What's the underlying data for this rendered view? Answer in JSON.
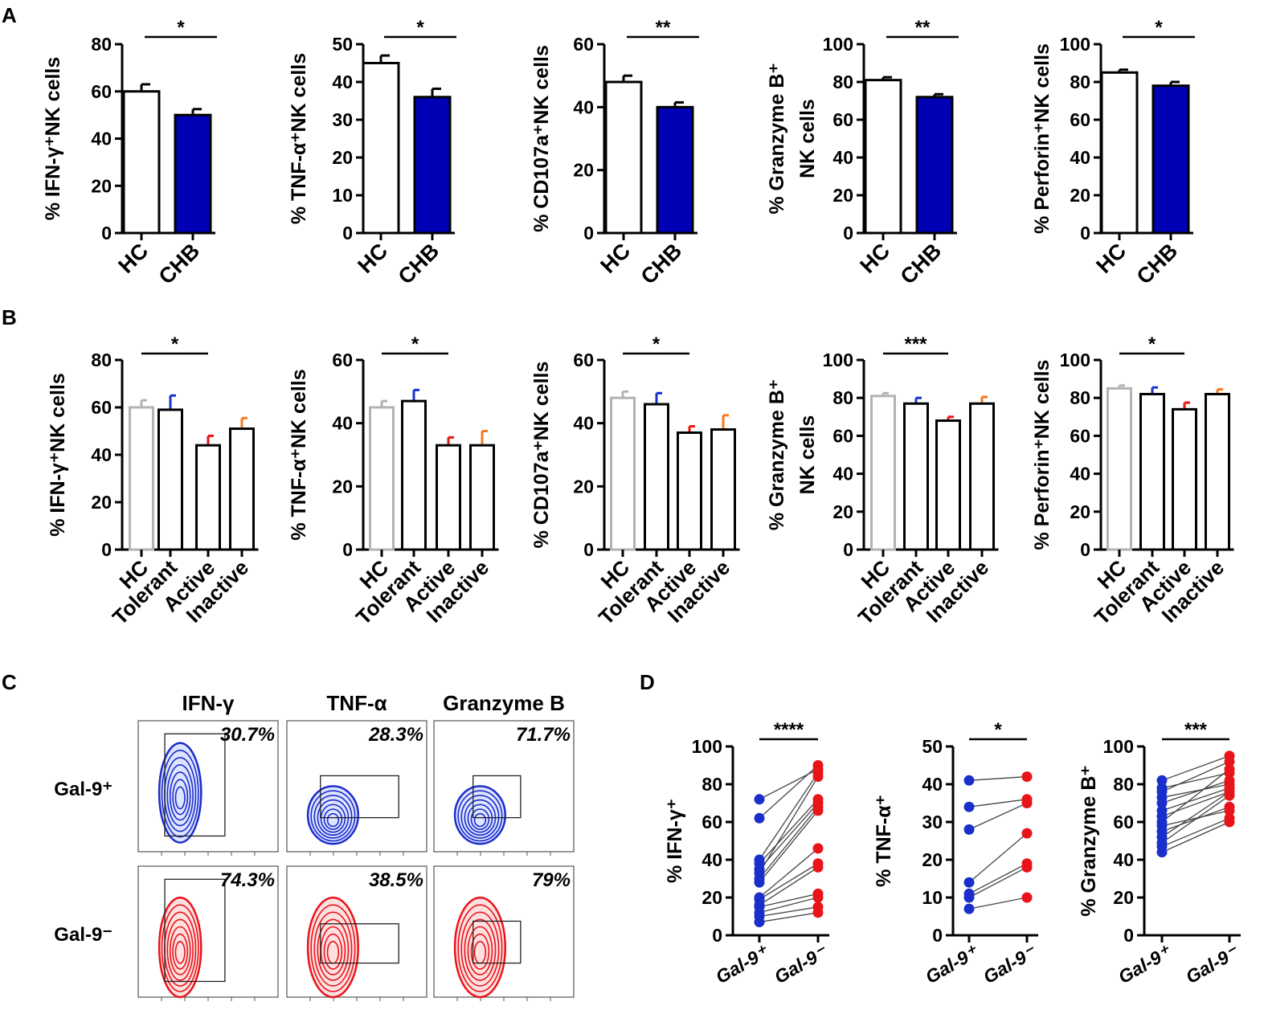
{
  "panel_labels": {
    "a": "A",
    "b": "B",
    "c": "C",
    "d": "D"
  },
  "colors": {
    "chb": "#0000b4",
    "hc_b": "#b3b3b3",
    "tolerant": "#1a33cc",
    "active": "#e8160e",
    "inactive": "#f47a20",
    "gal_pos": "#1a2ecc",
    "gal_neg": "#e8141a",
    "black": "#000000"
  },
  "chart_data": [
    {
      "id": "A1",
      "type": "bar",
      "title": "",
      "ylabel": "% IFN-γ⁺NK cells",
      "categories": [
        "HC",
        "CHB"
      ],
      "values": [
        60,
        50
      ],
      "errors": [
        3,
        2.5
      ],
      "ylim": [
        0,
        80
      ],
      "yticks": [
        "0",
        "20",
        "40",
        "60",
        "80"
      ],
      "significance": "*"
    },
    {
      "id": "A2",
      "type": "bar",
      "title": "",
      "ylabel": "% TNF-α⁺NK cells",
      "categories": [
        "HC",
        "CHB"
      ],
      "values": [
        45,
        36
      ],
      "errors": [
        2,
        2.2
      ],
      "ylim": [
        0,
        50
      ],
      "yticks": [
        "0",
        "10",
        "20",
        "30",
        "40",
        "50"
      ],
      "significance": "*"
    },
    {
      "id": "A3",
      "type": "bar",
      "title": "",
      "ylabel": "% CD107a⁺NK cells",
      "categories": [
        "HC",
        "CHB"
      ],
      "values": [
        48,
        40
      ],
      "errors": [
        2,
        1.5
      ],
      "ylim": [
        0,
        60
      ],
      "yticks": [
        "0",
        "20",
        "40",
        "60"
      ],
      "significance": "**"
    },
    {
      "id": "A4",
      "type": "bar",
      "title": "",
      "ylabel": "% Granzyme B⁺ NK cells",
      "categories": [
        "HC",
        "CHB"
      ],
      "values": [
        81,
        72
      ],
      "errors": [
        1.5,
        1.5
      ],
      "ylim": [
        0,
        100
      ],
      "yticks": [
        "0",
        "20",
        "40",
        "60",
        "80",
        "100"
      ],
      "significance": "**"
    },
    {
      "id": "A5",
      "type": "bar",
      "title": "",
      "ylabel": "% Perforin⁺NK cells",
      "categories": [
        "HC",
        "CHB"
      ],
      "values": [
        85,
        78
      ],
      "errors": [
        1.5,
        2
      ],
      "ylim": [
        0,
        100
      ],
      "yticks": [
        "0",
        "20",
        "40",
        "60",
        "80",
        "100"
      ],
      "significance": "*"
    },
    {
      "id": "B1",
      "type": "bar",
      "title": "",
      "ylabel": "% IFN-γ⁺NK cells",
      "categories": [
        "HC",
        "Tolerant",
        "Active",
        "Inactive"
      ],
      "values": [
        60,
        59,
        44,
        51
      ],
      "errors": [
        3,
        6,
        4,
        4.5
      ],
      "ylim": [
        0,
        80
      ],
      "yticks": [
        "0",
        "20",
        "40",
        "60",
        "80"
      ],
      "significance": "*"
    },
    {
      "id": "B2",
      "type": "bar",
      "title": "",
      "ylabel": "% TNF-α⁺NK cells",
      "categories": [
        "HC",
        "Tolerant",
        "Active",
        "Inactive"
      ],
      "values": [
        45,
        47,
        33,
        33
      ],
      "errors": [
        2,
        3.5,
        2.5,
        4.5
      ],
      "ylim": [
        0,
        60
      ],
      "yticks": [
        "0",
        "20",
        "40",
        "60"
      ],
      "significance": "*"
    },
    {
      "id": "B3",
      "type": "bar",
      "title": "",
      "ylabel": "% CD107a⁺NK cells",
      "categories": [
        "HC",
        "Tolerant",
        "Active",
        "Inactive"
      ],
      "values": [
        48,
        46,
        37,
        38
      ],
      "errors": [
        2,
        3.5,
        2,
        4.5
      ],
      "ylim": [
        0,
        60
      ],
      "yticks": [
        "0",
        "20",
        "40",
        "60"
      ],
      "significance": "*"
    },
    {
      "id": "B4",
      "type": "bar",
      "title": "",
      "ylabel": "% Granzyme B⁺ NK cells",
      "categories": [
        "HC",
        "Tolerant",
        "Active",
        "Inactive"
      ],
      "values": [
        81,
        77,
        68,
        77
      ],
      "errors": [
        1.5,
        3,
        2,
        3.5
      ],
      "ylim": [
        0,
        100
      ],
      "yticks": [
        "0",
        "20",
        "40",
        "60",
        "80",
        "100"
      ],
      "significance": "***"
    },
    {
      "id": "B5",
      "type": "bar",
      "title": "",
      "ylabel": "% Perforin⁺NK cells",
      "categories": [
        "HC",
        "Tolerant",
        "Active",
        "Inactive"
      ],
      "values": [
        85,
        82,
        74,
        82
      ],
      "errors": [
        1.5,
        3.5,
        3.5,
        2.5
      ],
      "ylim": [
        0,
        100
      ],
      "yticks": [
        "0",
        "20",
        "40",
        "60",
        "80",
        "100"
      ],
      "significance": "*"
    },
    {
      "id": "D1",
      "type": "scatter",
      "title": "",
      "ylabel": "% IFN-γ⁺",
      "categories": [
        "Gal-9⁺",
        "Gal-9⁻"
      ],
      "ylim": [
        0,
        100
      ],
      "yticks": [
        "0",
        "20",
        "40",
        "60",
        "80",
        "100"
      ],
      "significance": "****",
      "pairs": [
        [
          72,
          88
        ],
        [
          62,
          90
        ],
        [
          40,
          86
        ],
        [
          38,
          72
        ],
        [
          35,
          70
        ],
        [
          33,
          84
        ],
        [
          30,
          68
        ],
        [
          28,
          66
        ],
        [
          20,
          46
        ],
        [
          19,
          38
        ],
        [
          16,
          36
        ],
        [
          15,
          22
        ],
        [
          12,
          20
        ],
        [
          10,
          15
        ],
        [
          7,
          12
        ]
      ]
    },
    {
      "id": "D2",
      "type": "scatter",
      "title": "",
      "ylabel": "% TNF-α⁺",
      "categories": [
        "Gal-9⁺",
        "Gal-9⁻"
      ],
      "ylim": [
        0,
        50
      ],
      "yticks": [
        "0",
        "10",
        "20",
        "30",
        "40",
        "50"
      ],
      "significance": "*",
      "pairs": [
        [
          41,
          42
        ],
        [
          34,
          36
        ],
        [
          28,
          35
        ],
        [
          14,
          27
        ],
        [
          11,
          19
        ],
        [
          10,
          18
        ],
        [
          7,
          10
        ]
      ]
    },
    {
      "id": "D3",
      "type": "scatter",
      "title": "",
      "ylabel": "% Granzyme B⁺",
      "categories": [
        "Gal-9⁺",
        "Gal-9⁻"
      ],
      "ylim": [
        0,
        100
      ],
      "yticks": [
        "0",
        "20",
        "40",
        "60",
        "80",
        "100"
      ],
      "significance": "***",
      "pairs": [
        [
          82,
          95
        ],
        [
          78,
          86
        ],
        [
          76,
          92
        ],
        [
          73,
          80
        ],
        [
          70,
          82
        ],
        [
          66,
          78
        ],
        [
          63,
          76
        ],
        [
          60,
          88
        ],
        [
          58,
          66
        ],
        [
          55,
          68
        ],
        [
          52,
          76
        ],
        [
          49,
          74
        ],
        [
          47,
          62
        ],
        [
          44,
          60
        ]
      ]
    }
  ],
  "flow": {
    "columns": [
      "IFN-γ",
      "TNF-α",
      "Granzyme B"
    ],
    "rows": [
      {
        "label": "Gal-9⁺",
        "values": [
          "30.7%",
          "28.3%",
          "71.7%"
        ]
      },
      {
        "label": "Gal-9⁻",
        "values": [
          "74.3%",
          "38.5%",
          "79%"
        ]
      }
    ]
  }
}
